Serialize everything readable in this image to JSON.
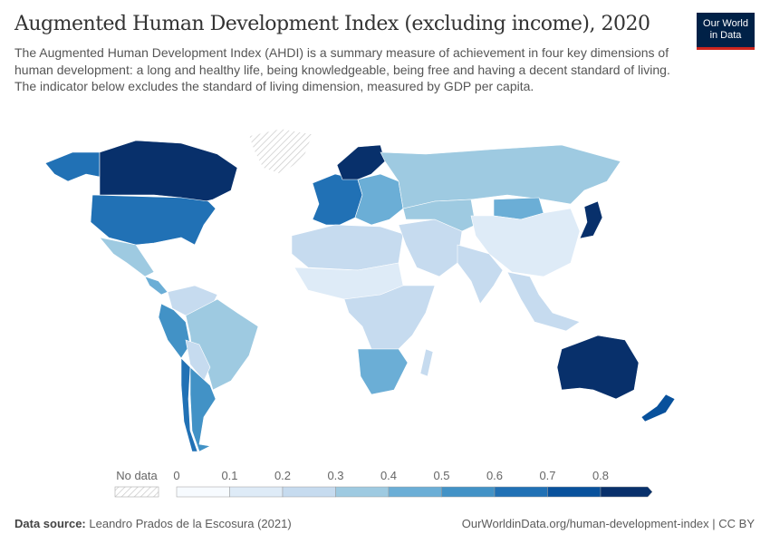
{
  "header": {
    "title": "Augmented Human Development Index (excluding income), 2020",
    "subtitle": "The Augmented Human Development Index (AHDI) is a summary measure of achievement in four key dimensions of human development: a long and healthy life, being knowledgeable, being free and having a decent standard of living. The indicator below excludes the standard of living dimension, measured by GDP per capita.",
    "logo_line1": "Our World",
    "logo_line2": "in Data"
  },
  "chart_data": {
    "type": "choropleth",
    "year": 2020,
    "legend": {
      "no_data_label": "No data",
      "ticks": [
        "0",
        "0.1",
        "0.2",
        "0.3",
        "0.4",
        "0.5",
        "0.6",
        "0.7",
        "0.8"
      ],
      "bins": [
        {
          "min": 0,
          "max": 0.1,
          "color": "#f7fbff"
        },
        {
          "min": 0.1,
          "max": 0.2,
          "color": "#deebf7"
        },
        {
          "min": 0.2,
          "max": 0.3,
          "color": "#c6dbef"
        },
        {
          "min": 0.3,
          "max": 0.4,
          "color": "#9ecae1"
        },
        {
          "min": 0.4,
          "max": 0.5,
          "color": "#6baed6"
        },
        {
          "min": 0.5,
          "max": 0.6,
          "color": "#4292c6"
        },
        {
          "min": 0.6,
          "max": 0.7,
          "color": "#2171b5"
        },
        {
          "min": 0.7,
          "max": 0.8,
          "color": "#08519c"
        },
        {
          "min": 0.8,
          "max": null,
          "color": "#08306b"
        }
      ]
    },
    "regions": [
      {
        "name": "Alaska",
        "bin": 6
      },
      {
        "name": "Canada",
        "bin": 8
      },
      {
        "name": "Greenland",
        "bin": null
      },
      {
        "name": "United States",
        "bin": 6
      },
      {
        "name": "Mexico",
        "bin": 3
      },
      {
        "name": "Central America",
        "bin": 4
      },
      {
        "name": "Colombia/Venezuela",
        "bin": 2
      },
      {
        "name": "Peru/Ecuador",
        "bin": 5
      },
      {
        "name": "Brazil",
        "bin": 3
      },
      {
        "name": "Bolivia/Paraguay",
        "bin": 2
      },
      {
        "name": "Argentina",
        "bin": 5
      },
      {
        "name": "Chile",
        "bin": 6
      },
      {
        "name": "Western Europe",
        "bin": 6
      },
      {
        "name": "Scandinavia",
        "bin": 8
      },
      {
        "name": "Eastern Europe",
        "bin": 4
      },
      {
        "name": "Russia",
        "bin": 3
      },
      {
        "name": "North Africa",
        "bin": 2
      },
      {
        "name": "Sahel",
        "bin": 1
      },
      {
        "name": "Central Africa",
        "bin": 2
      },
      {
        "name": "Southern Africa",
        "bin": 4
      },
      {
        "name": "Middle East",
        "bin": 2
      },
      {
        "name": "Central Asia",
        "bin": 3
      },
      {
        "name": "Mongolia",
        "bin": 4
      },
      {
        "name": "China",
        "bin": 1
      },
      {
        "name": "South Asia",
        "bin": 2
      },
      {
        "name": "Southeast Asia",
        "bin": 2
      },
      {
        "name": "Japan",
        "bin": 8
      },
      {
        "name": "Australia",
        "bin": 8
      },
      {
        "name": "New Zealand",
        "bin": 7
      },
      {
        "name": "Madagascar",
        "bin": 2
      }
    ]
  },
  "footer": {
    "source_label": "Data source:",
    "source": "Leandro Prados de la Escosura (2021)",
    "url": "OurWorldinData.org/human-development-index | CC BY"
  }
}
